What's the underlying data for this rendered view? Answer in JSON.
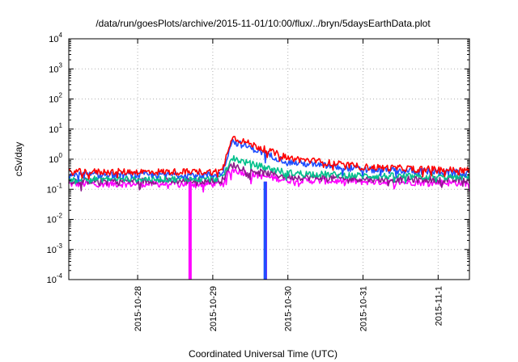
{
  "chart_data": {
    "type": "line",
    "title": "/data/run/goesPlots/archive/2015-11-01/10:00/flux/../bryn/5daysEarthData.plot",
    "xlabel": "Coordinated Universal Time (UTC)",
    "ylabel": "cSv/day",
    "x_range": [
      "2015-10-27T02:00",
      "2015-11-01T10:00"
    ],
    "x_ticks": [
      "2015-10-28",
      "2015-10-29",
      "2015-10-30",
      "2015-10-31",
      "2015-11-1"
    ],
    "y_scale": "log",
    "ylim": [
      0.0001,
      10000
    ],
    "y_ticks": [
      {
        "mantissa": "10",
        "exp": "4"
      },
      {
        "mantissa": "10",
        "exp": "3"
      },
      {
        "mantissa": "10",
        "exp": "2"
      },
      {
        "mantissa": "10",
        "exp": "1"
      },
      {
        "mantissa": "10",
        "exp": "0"
      },
      {
        "mantissa": "10",
        "exp": "-1"
      },
      {
        "mantissa": "10",
        "exp": "-2"
      },
      {
        "mantissa": "10",
        "exp": "-3"
      },
      {
        "mantissa": "10",
        "exp": "-4"
      }
    ],
    "grid": true,
    "series": [
      {
        "color": "#ff00ff",
        "x": [
          "2015-10-27T02:00",
          "2015-10-28T00:00",
          "2015-10-29T00:00",
          "2015-10-29T03:00",
          "2015-10-29T06:00",
          "2015-10-29T12:00",
          "2015-10-30T00:00",
          "2015-10-31T00:00",
          "2015-11-01T10:00"
        ],
        "y": [
          0.15,
          0.15,
          0.15,
          0.16,
          0.45,
          0.32,
          0.2,
          0.18,
          0.16
        ]
      },
      {
        "color": "#8b1a8b",
        "x": [
          "2015-10-27T02:00",
          "2015-10-28T00:00",
          "2015-10-29T00:00",
          "2015-10-29T03:00",
          "2015-10-29T06:00",
          "2015-10-29T12:00",
          "2015-10-30T00:00",
          "2015-10-31T00:00",
          "2015-11-01T10:00"
        ],
        "y": [
          0.19,
          0.19,
          0.19,
          0.2,
          0.65,
          0.42,
          0.26,
          0.22,
          0.2
        ]
      },
      {
        "color": "#00c08b",
        "x": [
          "2015-10-27T02:00",
          "2015-10-28T00:00",
          "2015-10-29T00:00",
          "2015-10-29T03:00",
          "2015-10-29T06:00",
          "2015-10-29T12:00",
          "2015-10-30T00:00",
          "2015-10-31T00:00",
          "2015-11-01T10:00"
        ],
        "y": [
          0.22,
          0.22,
          0.22,
          0.24,
          1.1,
          0.7,
          0.35,
          0.28,
          0.25
        ]
      },
      {
        "color": "#1f4fff",
        "x": [
          "2015-10-27T02:00",
          "2015-10-28T00:00",
          "2015-10-29T00:00",
          "2015-10-29T03:00",
          "2015-10-29T06:00",
          "2015-10-29T12:00",
          "2015-10-30T00:00",
          "2015-10-31T00:00",
          "2015-11-01T10:00"
        ],
        "y": [
          0.3,
          0.3,
          0.3,
          0.32,
          4.0,
          2.4,
          0.8,
          0.45,
          0.35
        ]
      },
      {
        "color": "#ff0000",
        "x": [
          "2015-10-27T02:00",
          "2015-10-28T00:00",
          "2015-10-29T00:00",
          "2015-10-29T03:00",
          "2015-10-29T06:00",
          "2015-10-29T12:00",
          "2015-10-30T00:00",
          "2015-10-31T00:00",
          "2015-11-01T10:00"
        ],
        "y": [
          0.38,
          0.38,
          0.38,
          0.4,
          5.5,
          3.2,
          1.1,
          0.55,
          0.42
        ]
      }
    ],
    "dropouts": [
      {
        "color": "#ff00ff",
        "x": "2015-10-28T16:45"
      },
      {
        "color": "#ff00ff",
        "x": "2015-10-29T16:50"
      },
      {
        "color": "#1f4fff",
        "x": "2015-10-29T16:45"
      }
    ]
  }
}
